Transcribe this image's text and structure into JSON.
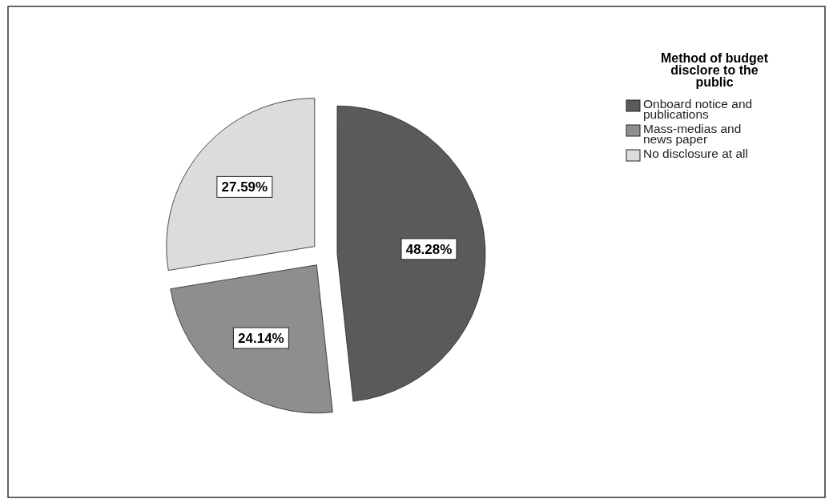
{
  "chart_data": {
    "type": "pie",
    "legend_title": "Method of budget disclore to the public",
    "categories": [
      "Onboard notice and publications",
      "Mass-medias and news paper",
      "No disclosure at all"
    ],
    "values": [
      48.28,
      24.14,
      27.59
    ],
    "colors": [
      "#5a5a5a",
      "#8e8e8e",
      "#dcdcdc"
    ],
    "value_labels": [
      "48.28%",
      "24.14%",
      "27.59%"
    ],
    "legend": "top right"
  }
}
